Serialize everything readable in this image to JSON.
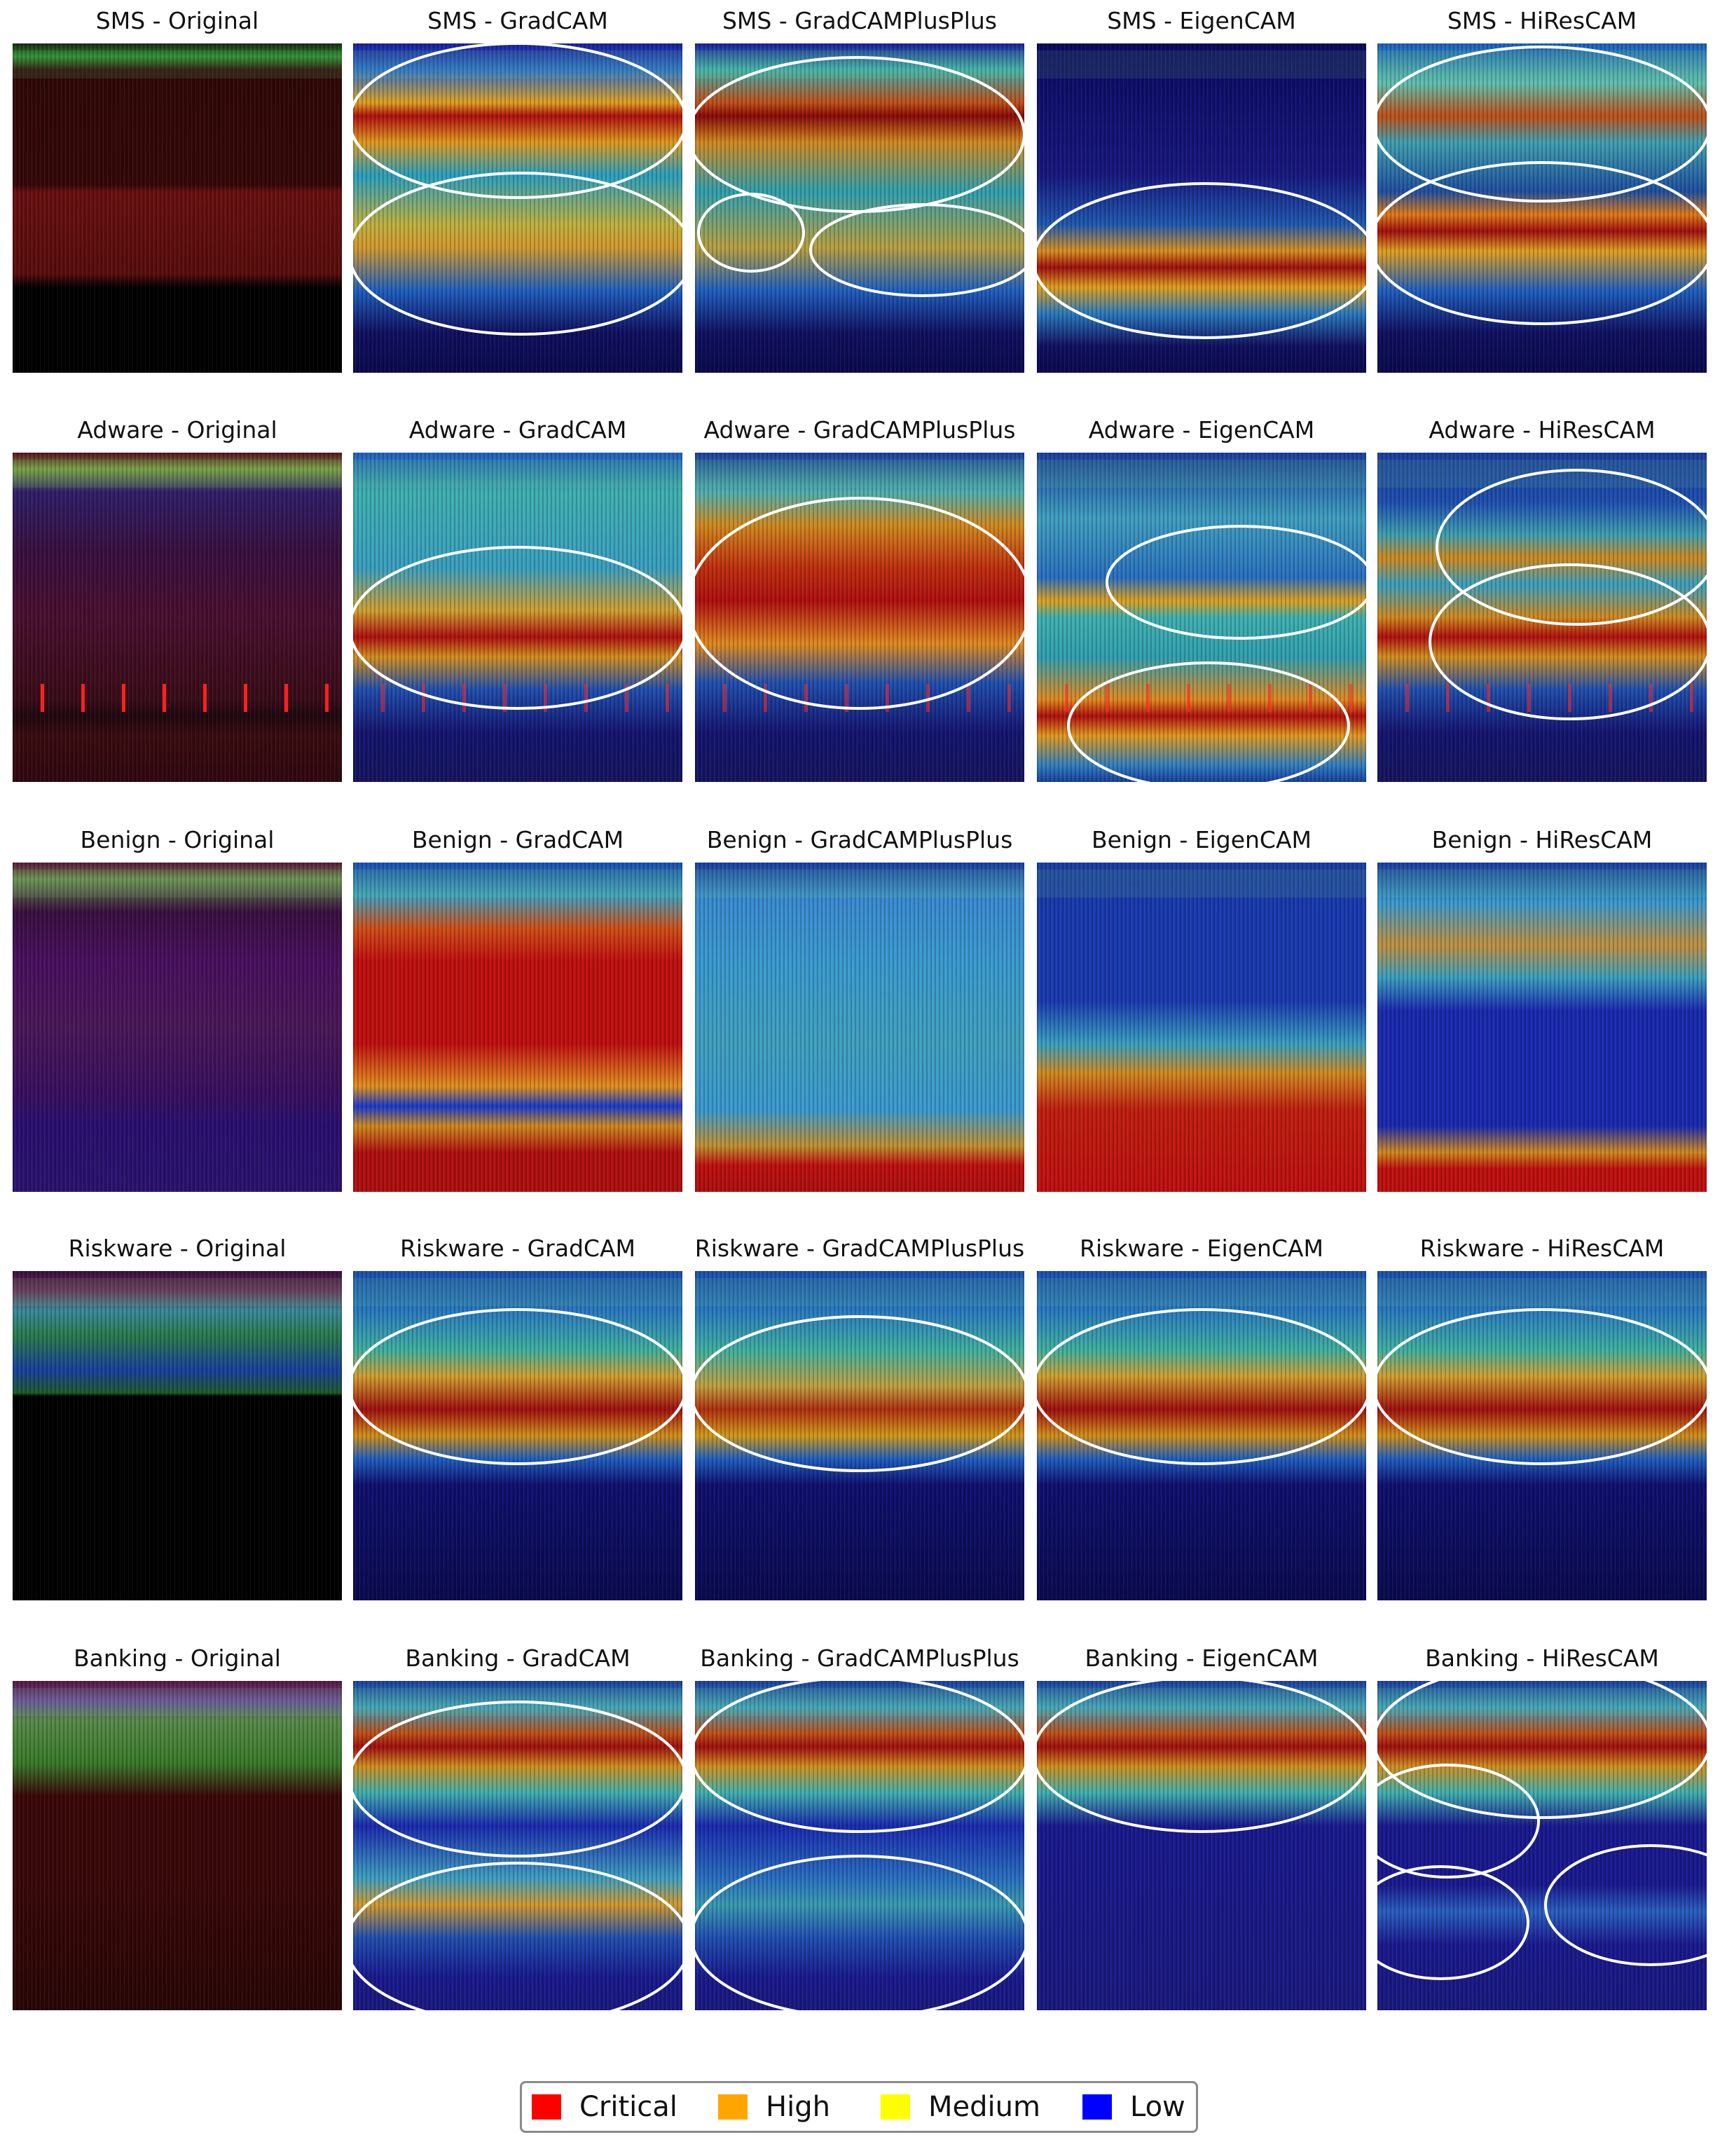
{
  "figure": {
    "rows": [
      {
        "category": "Original",
        "label": "SMS"
      },
      {
        "category": "Adware"
      },
      {
        "category": "Benign"
      },
      {
        "category": "Riskware"
      },
      {
        "category": "Banking"
      }
    ],
    "panels": [
      {
        "title": "SMS - Original",
        "kind": "original",
        "variant": "sms"
      },
      {
        "title": "SMS - GradCAM",
        "kind": "heatmap",
        "variant": "sms",
        "hot_bands": [
          0.2,
          0.6
        ],
        "ellipses": 2
      },
      {
        "title": "SMS - GradCAMPlusPlus",
        "kind": "heatmap",
        "variant": "sms",
        "hot_bands": [
          0.2,
          0.62
        ],
        "ellipses": 3
      },
      {
        "title": "SMS - EigenCAM",
        "kind": "heatmap",
        "variant": "sms",
        "hot_bands": [
          0.68
        ],
        "ellipses": 1
      },
      {
        "title": "SMS - HiResCAM",
        "kind": "heatmap",
        "variant": "sms",
        "hot_bands": [
          0.22,
          0.56
        ],
        "ellipses": 2
      },
      {
        "title": "Adware - Original",
        "kind": "original",
        "variant": "adware"
      },
      {
        "title": "Adware - GradCAM",
        "kind": "heatmap",
        "variant": "adware",
        "hot_bands": [
          0.55
        ],
        "ellipses": 1
      },
      {
        "title": "Adware - GradCAMPlusPlus",
        "kind": "heatmap",
        "variant": "adware",
        "hot_bands": [
          0.42
        ],
        "ellipses": 1
      },
      {
        "title": "Adware - EigenCAM",
        "kind": "heatmap",
        "variant": "adware",
        "hot_bands": [
          0.8
        ],
        "ellipses": 2
      },
      {
        "title": "Adware - HiResCAM",
        "kind": "heatmap",
        "variant": "adware",
        "hot_bands": [
          0.33,
          0.55
        ],
        "ellipses": 2
      },
      {
        "title": "Benign - Original",
        "kind": "original",
        "variant": "benign"
      },
      {
        "title": "Benign - GradCAM",
        "kind": "heatmap",
        "variant": "benign",
        "hot_bands": [
          0.45
        ],
        "ellipses": 0
      },
      {
        "title": "Benign - GradCAMPlusPlus",
        "kind": "heatmap",
        "variant": "benign",
        "hot_bands": [
          0.95
        ],
        "ellipses": 0
      },
      {
        "title": "Benign - EigenCAM",
        "kind": "heatmap",
        "variant": "benign",
        "hot_bands": [
          0.8
        ],
        "ellipses": 0
      },
      {
        "title": "Benign - HiResCAM",
        "kind": "heatmap",
        "variant": "benign",
        "hot_bands": [
          0.92
        ],
        "ellipses": 0
      },
      {
        "title": "Riskware - Original",
        "kind": "original",
        "variant": "riskware"
      },
      {
        "title": "Riskware - GradCAM",
        "kind": "heatmap",
        "variant": "riskware",
        "hot_bands": [
          0.4
        ],
        "ellipses": 1
      },
      {
        "title": "Riskware - GradCAMPlusPlus",
        "kind": "heatmap",
        "variant": "riskware",
        "hot_bands": [
          0.42
        ],
        "ellipses": 1
      },
      {
        "title": "Riskware - EigenCAM",
        "kind": "heatmap",
        "variant": "riskware",
        "hot_bands": [
          0.4
        ],
        "ellipses": 1
      },
      {
        "title": "Riskware - HiResCAM",
        "kind": "heatmap",
        "variant": "riskware",
        "hot_bands": [
          0.41
        ],
        "ellipses": 1
      },
      {
        "title": "Banking - Original",
        "kind": "original",
        "variant": "banking"
      },
      {
        "title": "Banking - GradCAM",
        "kind": "heatmap",
        "variant": "banking",
        "hot_bands": [
          0.18,
          0.65
        ],
        "ellipses": 2
      },
      {
        "title": "Banking - GradCAMPlusPlus",
        "kind": "heatmap",
        "variant": "banking",
        "hot_bands": [
          0.18
        ],
        "ellipses": 2
      },
      {
        "title": "Banking - EigenCAM",
        "kind": "heatmap",
        "variant": "banking",
        "hot_bands": [
          0.18
        ],
        "ellipses": 1
      },
      {
        "title": "Banking - HiResCAM",
        "kind": "heatmap",
        "variant": "banking",
        "hot_bands": [
          0.18,
          0.45,
          0.7
        ],
        "ellipses": 4
      }
    ]
  },
  "legend": {
    "items": [
      {
        "label": "Critical",
        "color": "#ff0000"
      },
      {
        "label": "High",
        "color": "#ffa500"
      },
      {
        "label": "Medium",
        "color": "#ffff00"
      },
      {
        "label": "Low",
        "color": "#0000ff"
      }
    ]
  }
}
